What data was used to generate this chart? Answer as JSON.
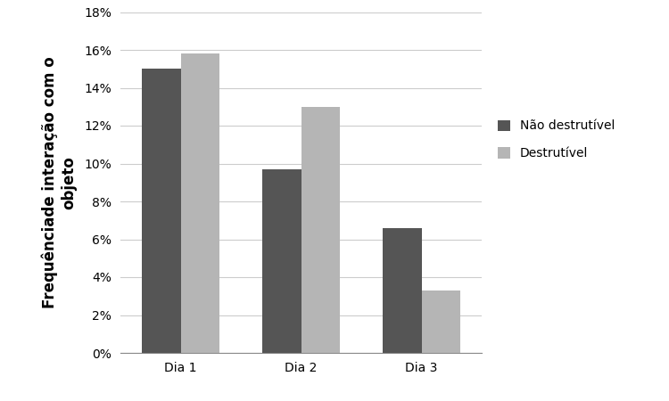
{
  "categories": [
    "Dia 1",
    "Dia 2",
    "Dia 3"
  ],
  "series": [
    {
      "label": "Não destrutível",
      "values": [
        0.15,
        0.097,
        0.066
      ],
      "color": "#555555"
    },
    {
      "label": "Destrutível",
      "values": [
        0.158,
        0.13,
        0.033
      ],
      "color": "#b5b5b5"
    }
  ],
  "ylabel": "Frequênciade interação com o\nobjeto",
  "ylim": [
    0,
    0.18
  ],
  "yticks": [
    0.0,
    0.02,
    0.04,
    0.06,
    0.08,
    0.1,
    0.12,
    0.14,
    0.16,
    0.18
  ],
  "bar_width": 0.32,
  "background_color": "#ffffff",
  "grid_color": "#cccccc",
  "legend_fontsize": 10,
  "axis_fontsize": 12,
  "tick_fontsize": 10,
  "xlim": [
    -0.5,
    2.5
  ]
}
